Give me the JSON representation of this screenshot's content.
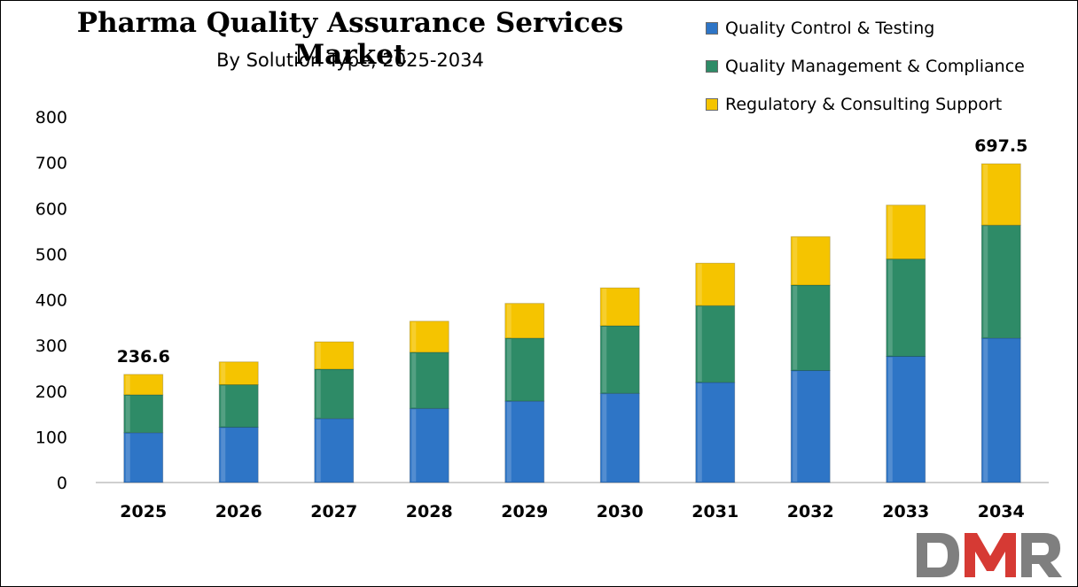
{
  "chart_data": {
    "type": "bar",
    "stacked": true,
    "title": "Pharma Quality Assurance Services Market",
    "subtitle": "By Solution Type, 2025-2034",
    "categories": [
      "2025",
      "2026",
      "2027",
      "2028",
      "2029",
      "2030",
      "2031",
      "2032",
      "2033",
      "2034"
    ],
    "series": [
      {
        "name": "Quality Control & Testing",
        "color": "#2e75c6",
        "values": [
          109,
          121,
          140,
          162,
          178,
          195,
          219,
          245,
          276,
          316
        ]
      },
      {
        "name": "Quality Management & Compliance",
        "color": "#2e8b67",
        "values": [
          83,
          93,
          108,
          123,
          138,
          148,
          168,
          187,
          213,
          247
        ]
      },
      {
        "name": "Regulatory & Consulting Support",
        "color": "#f5c400",
        "values": [
          44.6,
          50,
          60,
          68,
          76,
          83,
          93,
          106,
          118,
          134.5
        ]
      }
    ],
    "data_labels": [
      {
        "category": "2025",
        "text": "236.6"
      },
      {
        "category": "2034",
        "text": "697.5"
      }
    ],
    "ylim": [
      0,
      800
    ],
    "yticks": [
      "0",
      "100",
      "200",
      "300",
      "400",
      "500",
      "600",
      "700",
      "800"
    ],
    "grid": false,
    "legend_position": "top-right"
  },
  "logo": {
    "text": "DMR"
  }
}
